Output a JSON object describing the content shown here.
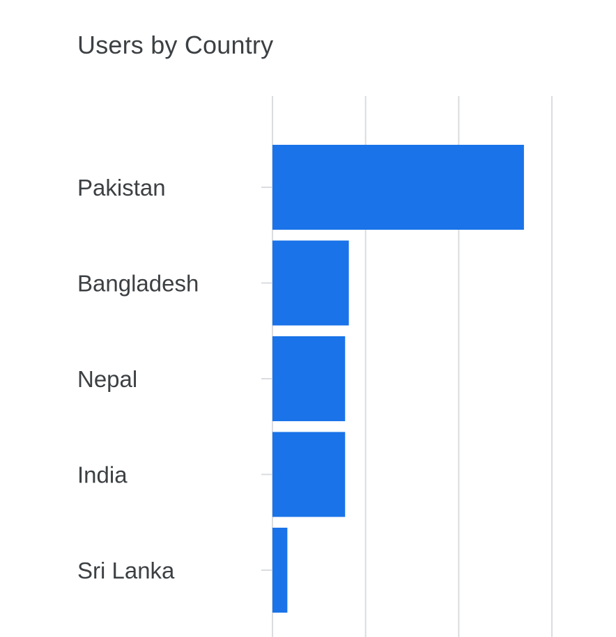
{
  "chart_data": {
    "type": "bar",
    "orientation": "horizontal",
    "title": "Users by Country",
    "categories": [
      "Pakistan",
      "Bangladesh",
      "Nepal",
      "India",
      "Sri Lanka"
    ],
    "values": [
      27,
      8.2,
      7.8,
      7.8,
      1.6
    ],
    "xlim": [
      0,
      30
    ],
    "gridlines_at": [
      0,
      10,
      20,
      30
    ],
    "grid": true,
    "legend": "none",
    "colors": {
      "bar": "#1a73e8",
      "grid": "#dadce0",
      "label": "#3c4043",
      "title": "#3c4043"
    }
  }
}
